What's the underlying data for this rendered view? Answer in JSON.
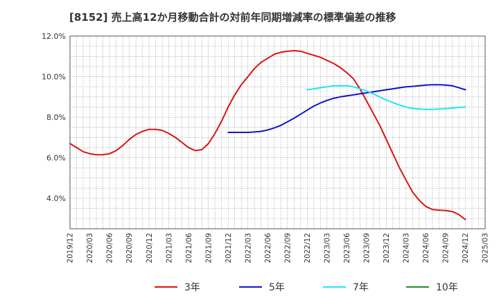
{
  "chart_data": {
    "type": "line",
    "title": "[8152]  売上高12か月移動合計の対前年同期増減率の標準偏差の推移",
    "xlabel": "",
    "ylabel": "",
    "ylim": [
      2.5,
      12.0
    ],
    "yticks": [
      4.0,
      6.0,
      8.0,
      10.0,
      12.0
    ],
    "ytick_labels": [
      "4.0%",
      "6.0%",
      "8.0%",
      "10.0%",
      "12.0%"
    ],
    "x_range": [
      "2019/12",
      "2025/03"
    ],
    "xtick_labels": [
      "2019/12",
      "2020/03",
      "2020/06",
      "2020/09",
      "2020/12",
      "2021/03",
      "2021/06",
      "2021/09",
      "2021/12",
      "2022/03",
      "2022/06",
      "2022/09",
      "2022/12",
      "2023/03",
      "2023/06",
      "2023/09",
      "2023/12",
      "2024/03",
      "2024/06",
      "2024/09",
      "2024/12",
      "2025/03"
    ],
    "grid": true,
    "legend_position": "bottom",
    "series": [
      {
        "name": "3年",
        "color": "#dd1111",
        "x": [
          "2019/12",
          "2020/01",
          "2020/02",
          "2020/03",
          "2020/04",
          "2020/05",
          "2020/06",
          "2020/07",
          "2020/08",
          "2020/09",
          "2020/10",
          "2020/11",
          "2020/12",
          "2021/01",
          "2021/02",
          "2021/03",
          "2021/04",
          "2021/05",
          "2021/06",
          "2021/07",
          "2021/08",
          "2021/09",
          "2021/10",
          "2021/11",
          "2021/12",
          "2022/01",
          "2022/02",
          "2022/03",
          "2022/04",
          "2022/05",
          "2022/06",
          "2022/07",
          "2022/08",
          "2022/09",
          "2022/10",
          "2022/11",
          "2022/12",
          "2023/01",
          "2023/02",
          "2023/03",
          "2023/04",
          "2023/05",
          "2023/06",
          "2023/07",
          "2023/08",
          "2023/09",
          "2023/10",
          "2023/11",
          "2023/12",
          "2024/01",
          "2024/02",
          "2024/03",
          "2024/04",
          "2024/05",
          "2024/06",
          "2024/07",
          "2024/08",
          "2024/09",
          "2024/10",
          "2024/11",
          "2024/12"
        ],
        "values": [
          6.7,
          6.5,
          6.3,
          6.2,
          6.15,
          6.15,
          6.2,
          6.35,
          6.6,
          6.9,
          7.15,
          7.3,
          7.4,
          7.4,
          7.35,
          7.2,
          7.0,
          6.75,
          6.5,
          6.35,
          6.4,
          6.7,
          7.2,
          7.8,
          8.5,
          9.1,
          9.6,
          10.0,
          10.4,
          10.7,
          10.9,
          11.1,
          11.2,
          11.25,
          11.28,
          11.25,
          11.15,
          11.05,
          10.95,
          10.8,
          10.65,
          10.45,
          10.2,
          9.9,
          9.4,
          8.8,
          8.2,
          7.6,
          6.9,
          6.2,
          5.5,
          4.9,
          4.3,
          3.9,
          3.6,
          3.45,
          3.42,
          3.4,
          3.35,
          3.2,
          2.95
        ]
      },
      {
        "name": "5年",
        "color": "#1111cc",
        "x": [
          "2021/12",
          "2022/01",
          "2022/02",
          "2022/03",
          "2022/04",
          "2022/05",
          "2022/06",
          "2022/07",
          "2022/08",
          "2022/09",
          "2022/10",
          "2022/11",
          "2022/12",
          "2023/01",
          "2023/02",
          "2023/03",
          "2023/04",
          "2023/05",
          "2023/06",
          "2023/07",
          "2023/08",
          "2023/09",
          "2023/10",
          "2023/11",
          "2023/12",
          "2024/01",
          "2024/02",
          "2024/03",
          "2024/04",
          "2024/05",
          "2024/06",
          "2024/07",
          "2024/08",
          "2024/09",
          "2024/10",
          "2024/11",
          "2024/12"
        ],
        "values": [
          7.25,
          7.25,
          7.25,
          7.25,
          7.27,
          7.3,
          7.37,
          7.47,
          7.6,
          7.77,
          7.95,
          8.15,
          8.35,
          8.55,
          8.7,
          8.83,
          8.93,
          9.0,
          9.05,
          9.1,
          9.15,
          9.2,
          9.25,
          9.3,
          9.35,
          9.4,
          9.45,
          9.5,
          9.52,
          9.55,
          9.58,
          9.6,
          9.6,
          9.58,
          9.55,
          9.45,
          9.35
        ]
      },
      {
        "name": "7年",
        "color": "#22e5ee",
        "x": [
          "2022/12",
          "2023/01",
          "2023/02",
          "2023/03",
          "2023/04",
          "2023/05",
          "2023/06",
          "2023/07",
          "2023/08",
          "2023/09",
          "2023/10",
          "2023/11",
          "2023/12",
          "2024/01",
          "2024/02",
          "2024/03",
          "2024/04",
          "2024/05",
          "2024/06",
          "2024/07",
          "2024/08",
          "2024/09",
          "2024/10",
          "2024/11",
          "2024/12"
        ],
        "values": [
          9.35,
          9.4,
          9.45,
          9.5,
          9.55,
          9.55,
          9.55,
          9.5,
          9.4,
          9.3,
          9.15,
          9.0,
          8.85,
          8.72,
          8.6,
          8.5,
          8.43,
          8.4,
          8.38,
          8.38,
          8.4,
          8.42,
          8.45,
          8.48,
          8.5
        ]
      },
      {
        "name": "10年",
        "color": "#228822",
        "x": [],
        "values": []
      }
    ]
  }
}
